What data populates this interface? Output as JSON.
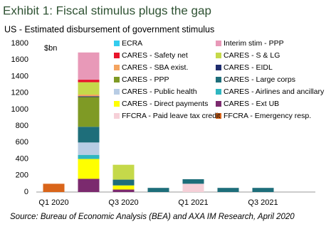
{
  "chart_data": {
    "type": "stacked_bar",
    "title": "Exhibit 1: Fiscal stimulus plugs the gap",
    "subtitle": "US - Estimated disbursement of government stimulus",
    "y_label": "$bn",
    "source": "Source: Bureau of Economic Analysis (BEA) and AXA IM Research, April 2020",
    "categories": [
      "Q1 2020",
      null,
      "Q3 2020",
      null,
      "Q1 2021",
      null,
      "Q3 2021",
      null
    ],
    "ylim": [
      0,
      1800
    ],
    "yticks": [
      0,
      200,
      400,
      600,
      800,
      1000,
      1200,
      1400,
      1600,
      1800
    ],
    "series": [
      {
        "name": "FFCRA - Emergency resp.",
        "color": "#d9651a",
        "values": [
          100,
          null,
          null,
          null,
          null,
          null,
          null,
          null
        ]
      },
      {
        "name": "FFCRA - Paid leave tax credit",
        "color": "#f6d0d8",
        "values": [
          null,
          null,
          null,
          null,
          100,
          null,
          null,
          null
        ]
      },
      {
        "name": "CARES - Ext UB",
        "color": "#7b2a6e",
        "values": [
          null,
          160,
          30,
          null,
          null,
          null,
          null,
          null
        ]
      },
      {
        "name": "CARES - Direct payments",
        "color": "#ffff00",
        "values": [
          null,
          240,
          50,
          null,
          null,
          null,
          null,
          null
        ]
      },
      {
        "name": "CARES - Airlines and ancillary",
        "color": "#2fb6c0",
        "values": [
          null,
          50,
          null,
          null,
          null,
          null,
          null,
          null
        ]
      },
      {
        "name": "CARES - Public health",
        "color": "#b8cce4",
        "values": [
          null,
          150,
          null,
          null,
          null,
          null,
          null,
          null
        ]
      },
      {
        "name": "CARES - Large corps",
        "color": "#1e6e7a",
        "values": [
          null,
          190,
          70,
          50,
          55,
          50,
          50,
          null
        ]
      },
      {
        "name": "CARES - PPP",
        "color": "#7f9a25",
        "values": [
          null,
          360,
          null,
          null,
          null,
          null,
          null,
          null
        ]
      },
      {
        "name": "CARES - EIDL",
        "color": "#1f2d6e",
        "values": [
          null,
          10,
          null,
          null,
          null,
          null,
          null,
          null
        ]
      },
      {
        "name": "CARES - SBA exist.",
        "color": "#f4a460",
        "values": [
          null,
          20,
          null,
          null,
          null,
          null,
          null,
          null
        ]
      },
      {
        "name": "CARES - S & LG",
        "color": "#c5d94a",
        "values": [
          null,
          150,
          180,
          null,
          null,
          null,
          null,
          null
        ]
      },
      {
        "name": "CARES - Safety net",
        "color": "#e8142b",
        "values": [
          null,
          30,
          null,
          null,
          null,
          null,
          null,
          null
        ]
      },
      {
        "name": "Interim stim - PPP",
        "color": "#e899b8",
        "values": [
          null,
          330,
          null,
          null,
          null,
          null,
          null,
          null
        ]
      },
      {
        "name": "ECRA",
        "color": "#33ccee",
        "values": [
          null,
          null,
          null,
          null,
          null,
          null,
          null,
          null
        ]
      }
    ]
  }
}
